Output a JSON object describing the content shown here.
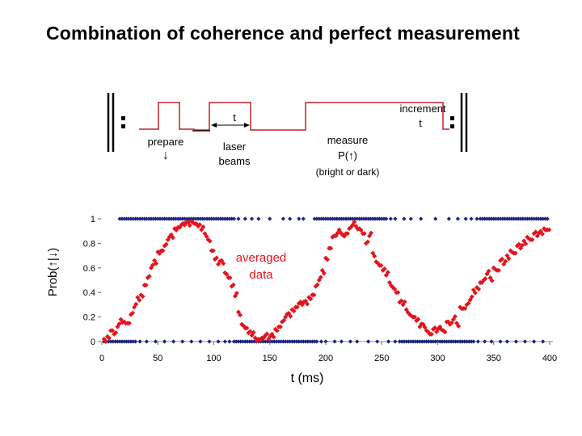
{
  "title": "Combination of coherence and perfect measurement",
  "sequence": {
    "prepare_label": "prepare",
    "prepare_arrow": "↓",
    "t_label": "t",
    "laser_label_line1": "laser",
    "laser_label_line2": "beams",
    "measure_label_line1": "measure",
    "measure_label_line2": "P(↑)",
    "measure_label_line3": "(bright or dark)",
    "increment_label_line1": "increment",
    "increment_label_line2": "t"
  },
  "colors": {
    "pulse_line": "#c0202a",
    "single_shot": "#1a237e",
    "averaged": "#e4141e"
  },
  "chart_data": {
    "type": "scatter",
    "xlabel": "t (ms)",
    "ylabel": "Prob(↑|↓)",
    "xlim": [
      0,
      400
    ],
    "ylim": [
      0,
      1
    ],
    "xticks": [
      0,
      50,
      100,
      150,
      200,
      250,
      300,
      350,
      400
    ],
    "yticks": [
      0,
      0.2,
      0.4,
      0.6,
      0.8,
      1
    ],
    "ytick_labels": [
      "0",
      "0.2",
      "0.4",
      "0.6",
      "0.8",
      "1"
    ],
    "annotation_line1": "averaged",
    "annotation_line2": "data",
    "series": [
      {
        "role": "averaged",
        "marker": "diamond",
        "x": [
          2,
          5,
          8,
          11,
          14,
          17,
          20,
          23,
          26,
          29,
          32,
          35,
          38,
          41,
          44,
          47,
          50,
          53,
          56,
          59,
          62,
          65,
          68,
          71,
          74,
          77,
          80,
          83,
          86,
          89,
          92,
          95,
          98,
          101,
          104,
          107,
          110,
          113,
          116,
          119,
          122,
          125,
          128,
          131,
          134,
          137,
          140,
          143,
          146,
          149,
          152,
          155,
          158,
          161,
          164,
          167,
          170,
          173,
          176,
          179,
          182,
          185,
          188,
          191,
          194,
          197,
          200,
          203,
          206,
          209,
          212,
          215,
          218,
          221,
          224,
          227,
          230,
          233,
          236,
          239,
          242,
          245,
          248,
          251,
          254,
          257,
          260,
          263,
          266,
          269,
          272,
          275,
          278,
          281,
          284,
          287,
          290,
          293,
          296,
          299,
          302,
          305,
          308,
          311,
          314,
          317,
          320,
          323,
          326,
          329,
          332,
          335,
          338,
          341,
          344,
          347,
          350,
          353,
          356,
          359,
          362,
          365,
          368,
          371,
          374,
          377,
          380,
          383,
          386,
          389,
          392,
          395,
          398
        ],
        "y": [
          0.02,
          0.04,
          0.09,
          0.06,
          0.12,
          0.18,
          0.16,
          0.15,
          0.22,
          0.28,
          0.36,
          0.38,
          0.46,
          0.52,
          0.6,
          0.66,
          0.73,
          0.74,
          0.78,
          0.83,
          0.87,
          0.92,
          0.93,
          0.95,
          0.95,
          0.97,
          0.98,
          0.96,
          0.94,
          0.91,
          0.88,
          0.83,
          0.74,
          0.67,
          0.63,
          0.66,
          0.56,
          0.52,
          0.45,
          0.37,
          0.24,
          0.14,
          0.11,
          0.07,
          0.05,
          0.03,
          0.02,
          0.03,
          0.05,
          0.02,
          0.06,
          0.1,
          0.12,
          0.16,
          0.2,
          0.23,
          0.26,
          0.28,
          0.31,
          0.3,
          0.33,
          0.36,
          0.38,
          0.45,
          0.5,
          0.58,
          0.68,
          0.76,
          0.85,
          0.86,
          0.91,
          0.87,
          0.88,
          0.92,
          0.95,
          0.94,
          0.92,
          0.88,
          0.8,
          0.86,
          0.72,
          0.65,
          0.62,
          0.58,
          0.54,
          0.48,
          0.44,
          0.4,
          0.32,
          0.3,
          0.26,
          0.22,
          0.2,
          0.17,
          0.12,
          0.14,
          0.09,
          0.06,
          0.1,
          0.08,
          0.12,
          0.09,
          0.16,
          0.14,
          0.18,
          0.15,
          0.28,
          0.27,
          0.3,
          0.34,
          0.42,
          0.44,
          0.48,
          0.5,
          0.55,
          0.52,
          0.6,
          0.58,
          0.66,
          0.63,
          0.7,
          0.74,
          0.72,
          0.78,
          0.76,
          0.82,
          0.85,
          0.83,
          0.88,
          0.86,
          0.9,
          0.92,
          0.91
        ]
      },
      {
        "role": "single-shot",
        "marker": "diamond",
        "x_ones": [
          16,
          18,
          20,
          22,
          24,
          26,
          28,
          30,
          32,
          34,
          36,
          38,
          40,
          42,
          44,
          46,
          48,
          50,
          52,
          54,
          56,
          58,
          60,
          62,
          64,
          66,
          68,
          70,
          72,
          74,
          76,
          78,
          80,
          82,
          84,
          86,
          88,
          90,
          92,
          94,
          96,
          98,
          100,
          102,
          104,
          106,
          108,
          110,
          112,
          114,
          116,
          118,
          122,
          128,
          134,
          140,
          150,
          162,
          168,
          176,
          180,
          190,
          192,
          194,
          196,
          198,
          200,
          202,
          204,
          206,
          208,
          210,
          212,
          214,
          216,
          218,
          220,
          222,
          224,
          226,
          228,
          230,
          232,
          234,
          236,
          238,
          240,
          242,
          244,
          246,
          248,
          250,
          252,
          254,
          258,
          262,
          270,
          276,
          285,
          298,
          310,
          318,
          325,
          330,
          335,
          338,
          340,
          342,
          344,
          346,
          348,
          350,
          352,
          354,
          356,
          358,
          360,
          362,
          364,
          366,
          368,
          370,
          372,
          374,
          376,
          378,
          380,
          382,
          384,
          386,
          388,
          390,
          392,
          394,
          396,
          398
        ],
        "x_zeros": [
          2,
          4,
          6,
          8,
          10,
          12,
          14,
          16,
          18,
          20,
          22,
          24,
          26,
          28,
          30,
          34,
          40,
          48,
          56,
          64,
          72,
          80,
          88,
          96,
          104,
          110,
          114,
          118,
          120,
          122,
          124,
          126,
          128,
          130,
          132,
          134,
          136,
          138,
          140,
          142,
          144,
          146,
          148,
          150,
          152,
          154,
          156,
          158,
          160,
          162,
          164,
          166,
          168,
          170,
          172,
          174,
          176,
          178,
          180,
          182,
          184,
          186,
          188,
          190,
          192,
          196,
          200,
          208,
          214,
          222,
          228,
          238,
          246,
          256,
          262,
          266,
          268,
          270,
          272,
          274,
          276,
          278,
          280,
          282,
          284,
          286,
          288,
          290,
          292,
          294,
          296,
          298,
          300,
          302,
          304,
          306,
          308,
          310,
          312,
          314,
          316,
          318,
          320,
          322,
          324,
          326,
          328,
          330,
          332,
          336,
          342,
          348,
          356,
          362,
          370,
          378,
          386,
          394
        ]
      }
    ]
  }
}
